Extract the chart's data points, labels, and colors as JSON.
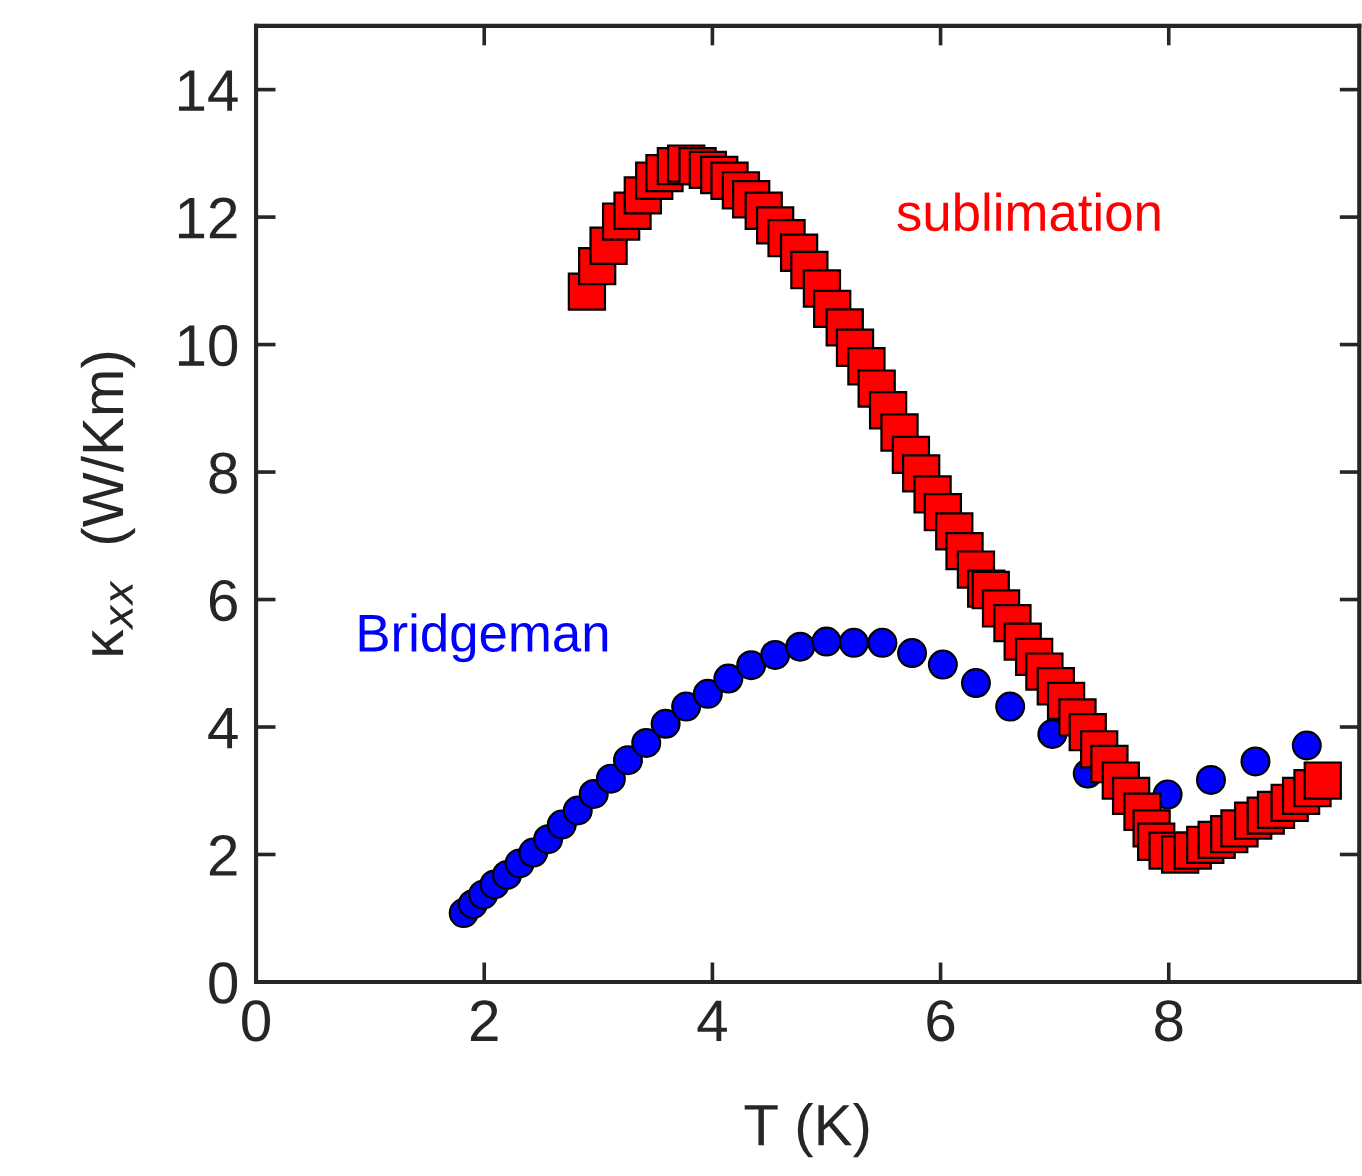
{
  "chart_data": {
    "type": "scatter",
    "xlabel": "T (K)",
    "ylabel": "κ$_{xx}$  (W/Km)",
    "xlim": [
      0,
      9.67
    ],
    "ylim": [
      0,
      15
    ],
    "xticks": [
      0,
      2,
      4,
      6,
      8
    ],
    "yticks": [
      0,
      2,
      4,
      6,
      8,
      10,
      12,
      14
    ],
    "grid": false,
    "legend": false,
    "series": [
      {
        "name": "Bridgeman",
        "color": "#0000ff",
        "marker": "circle",
        "x": [
          1.82,
          1.9,
          1.99,
          2.09,
          2.2,
          2.31,
          2.43,
          2.56,
          2.68,
          2.82,
          2.96,
          3.11,
          3.26,
          3.42,
          3.59,
          3.77,
          3.96,
          4.14,
          4.34,
          4.55,
          4.77,
          5.0,
          5.24,
          5.49,
          5.75,
          6.02,
          6.31,
          6.61,
          6.98,
          7.29,
          7.64,
          7.99,
          8.37,
          8.76,
          9.21
        ],
        "values": [
          1.08,
          1.22,
          1.37,
          1.53,
          1.68,
          1.86,
          2.03,
          2.24,
          2.47,
          2.69,
          2.95,
          3.19,
          3.48,
          3.75,
          4.05,
          4.32,
          4.52,
          4.76,
          4.97,
          5.13,
          5.26,
          5.34,
          5.32,
          5.32,
          5.16,
          4.98,
          4.69,
          4.32,
          3.89,
          3.27,
          null,
          2.94,
          3.17,
          3.46,
          3.71
        ]
      },
      {
        "name": "sublimation",
        "color": "#ff0000",
        "marker": "square",
        "x": [
          2.9,
          2.99,
          3.09,
          3.2,
          3.3,
          3.39,
          3.49,
          3.58,
          3.68,
          3.77,
          3.87,
          3.96,
          4.06,
          4.15,
          4.25,
          4.34,
          4.45,
          4.55,
          4.65,
          4.76,
          4.85,
          4.96,
          5.05,
          5.16,
          5.25,
          5.35,
          5.44,
          5.54,
          5.64,
          5.74,
          5.83,
          5.93,
          6.02,
          6.12,
          6.21,
          6.31,
          6.4,
          6.44,
          6.53,
          6.63,
          6.72,
          6.82,
          6.91,
          7.01,
          7.1,
          7.2,
          7.29,
          7.39,
          7.48,
          7.58,
          7.67,
          7.77,
          7.85,
          7.89,
          7.99,
          8.1,
          8.21,
          8.32,
          8.42,
          8.53,
          8.62,
          8.74,
          8.85,
          8.94,
          9.06,
          9.16,
          9.26,
          9.35
        ],
        "values": [
          10.83,
          11.23,
          11.55,
          11.93,
          12.1,
          12.34,
          12.57,
          12.69,
          12.8,
          12.84,
          12.8,
          12.74,
          12.66,
          12.57,
          12.42,
          12.28,
          12.1,
          11.87,
          11.67,
          11.44,
          11.17,
          10.88,
          10.56,
          10.27,
          9.95,
          9.66,
          9.31,
          8.97,
          8.62,
          8.27,
          7.98,
          7.65,
          7.37,
          7.07,
          6.76,
          6.47,
          6.17,
          6.15,
          5.86,
          5.63,
          5.34,
          5.1,
          4.87,
          4.64,
          4.41,
          4.15,
          3.92,
          3.65,
          3.42,
          3.16,
          2.92,
          2.67,
          2.41,
          2.2,
          2.06,
          2.0,
          2.06,
          2.15,
          2.23,
          2.32,
          2.41,
          2.53,
          2.61,
          2.7,
          2.81,
          2.92,
          3.04,
          3.16
        ]
      }
    ]
  }
}
